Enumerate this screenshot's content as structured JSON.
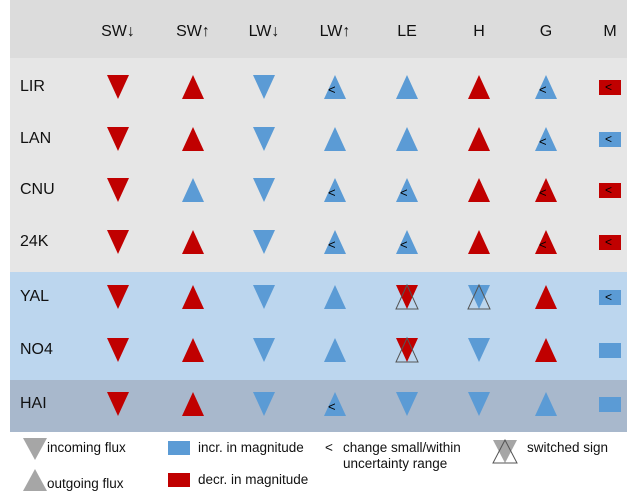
{
  "colors": {
    "red": "#c00000",
    "blue": "#5b9bd5",
    "legend_gray": "#a6a6a6",
    "header_band": "#dcdcdc",
    "gray_band": "#e6e6e6",
    "blue_band": "#bcd6ee",
    "dark_band": "#a8b8cc"
  },
  "columns": [
    "SW↓",
    "SW↑",
    "LW↓",
    "LW↑",
    "LE",
    "H",
    "G",
    "M"
  ],
  "rows": [
    {
      "label": "LIR",
      "band": "gray",
      "cells": [
        {
          "dir": "down",
          "color": "red"
        },
        {
          "dir": "up",
          "color": "red"
        },
        {
          "dir": "down",
          "color": "blue"
        },
        {
          "dir": "up",
          "color": "blue",
          "lt": "<"
        },
        {
          "dir": "up",
          "color": "blue"
        },
        {
          "dir": "up",
          "color": "red"
        },
        {
          "dir": "up",
          "color": "blue",
          "lt": "<"
        },
        {
          "dir": "rect",
          "color": "red",
          "lt": "<"
        }
      ]
    },
    {
      "label": "LAN",
      "band": "gray",
      "cells": [
        {
          "dir": "down",
          "color": "red"
        },
        {
          "dir": "up",
          "color": "red"
        },
        {
          "dir": "down",
          "color": "blue"
        },
        {
          "dir": "up",
          "color": "blue"
        },
        {
          "dir": "up",
          "color": "blue"
        },
        {
          "dir": "up",
          "color": "red"
        },
        {
          "dir": "up",
          "color": "blue",
          "lt": "<"
        },
        {
          "dir": "rect",
          "color": "blue",
          "lt": "<"
        }
      ]
    },
    {
      "label": "CNU",
      "band": "gray",
      "cells": [
        {
          "dir": "down",
          "color": "red"
        },
        {
          "dir": "up",
          "color": "blue"
        },
        {
          "dir": "down",
          "color": "blue"
        },
        {
          "dir": "up",
          "color": "blue",
          "lt": "<"
        },
        {
          "dir": "up",
          "color": "blue",
          "lt": "<"
        },
        {
          "dir": "up",
          "color": "red"
        },
        {
          "dir": "up",
          "color": "red",
          "lt": "<"
        },
        {
          "dir": "rect",
          "color": "red",
          "lt": "<"
        }
      ]
    },
    {
      "label": "24K",
      "band": "gray",
      "cells": [
        {
          "dir": "down",
          "color": "red"
        },
        {
          "dir": "up",
          "color": "red"
        },
        {
          "dir": "down",
          "color": "blue"
        },
        {
          "dir": "up",
          "color": "blue",
          "lt": "<"
        },
        {
          "dir": "up",
          "color": "blue",
          "lt": "<"
        },
        {
          "dir": "up",
          "color": "red"
        },
        {
          "dir": "up",
          "color": "red",
          "lt": "<"
        },
        {
          "dir": "rect",
          "color": "red",
          "lt": "<"
        }
      ]
    },
    {
      "label": "YAL",
      "band": "blue",
      "cells": [
        {
          "dir": "down",
          "color": "red"
        },
        {
          "dir": "up",
          "color": "red"
        },
        {
          "dir": "down",
          "color": "blue"
        },
        {
          "dir": "up",
          "color": "blue"
        },
        {
          "dir": "down",
          "color": "red",
          "switched": true
        },
        {
          "dir": "down",
          "color": "blue",
          "switched": true
        },
        {
          "dir": "up",
          "color": "red"
        },
        {
          "dir": "rect",
          "color": "blue",
          "lt": "<"
        }
      ]
    },
    {
      "label": "NO4",
      "band": "blue",
      "cells": [
        {
          "dir": "down",
          "color": "red"
        },
        {
          "dir": "up",
          "color": "red"
        },
        {
          "dir": "down",
          "color": "blue"
        },
        {
          "dir": "up",
          "color": "blue"
        },
        {
          "dir": "down",
          "color": "red",
          "switched": true
        },
        {
          "dir": "down",
          "color": "blue"
        },
        {
          "dir": "up",
          "color": "red"
        },
        {
          "dir": "rect",
          "color": "blue"
        }
      ]
    },
    {
      "label": "HAI",
      "band": "dark",
      "cells": [
        {
          "dir": "down",
          "color": "red"
        },
        {
          "dir": "up",
          "color": "red"
        },
        {
          "dir": "down",
          "color": "blue"
        },
        {
          "dir": "up",
          "color": "blue",
          "lt": "<"
        },
        {
          "dir": "down",
          "color": "blue"
        },
        {
          "dir": "down",
          "color": "blue"
        },
        {
          "dir": "up",
          "color": "blue"
        },
        {
          "dir": "rect",
          "color": "blue"
        }
      ]
    }
  ],
  "legend": {
    "incoming": "incoming flux",
    "outgoing": "outgoing flux",
    "incr": "incr. in magnitude",
    "decr": "decr. in magnitude",
    "lt_symbol": "<",
    "small_line1": "change small/within",
    "small_line2": "uncertainty range",
    "switched": "switched sign"
  }
}
